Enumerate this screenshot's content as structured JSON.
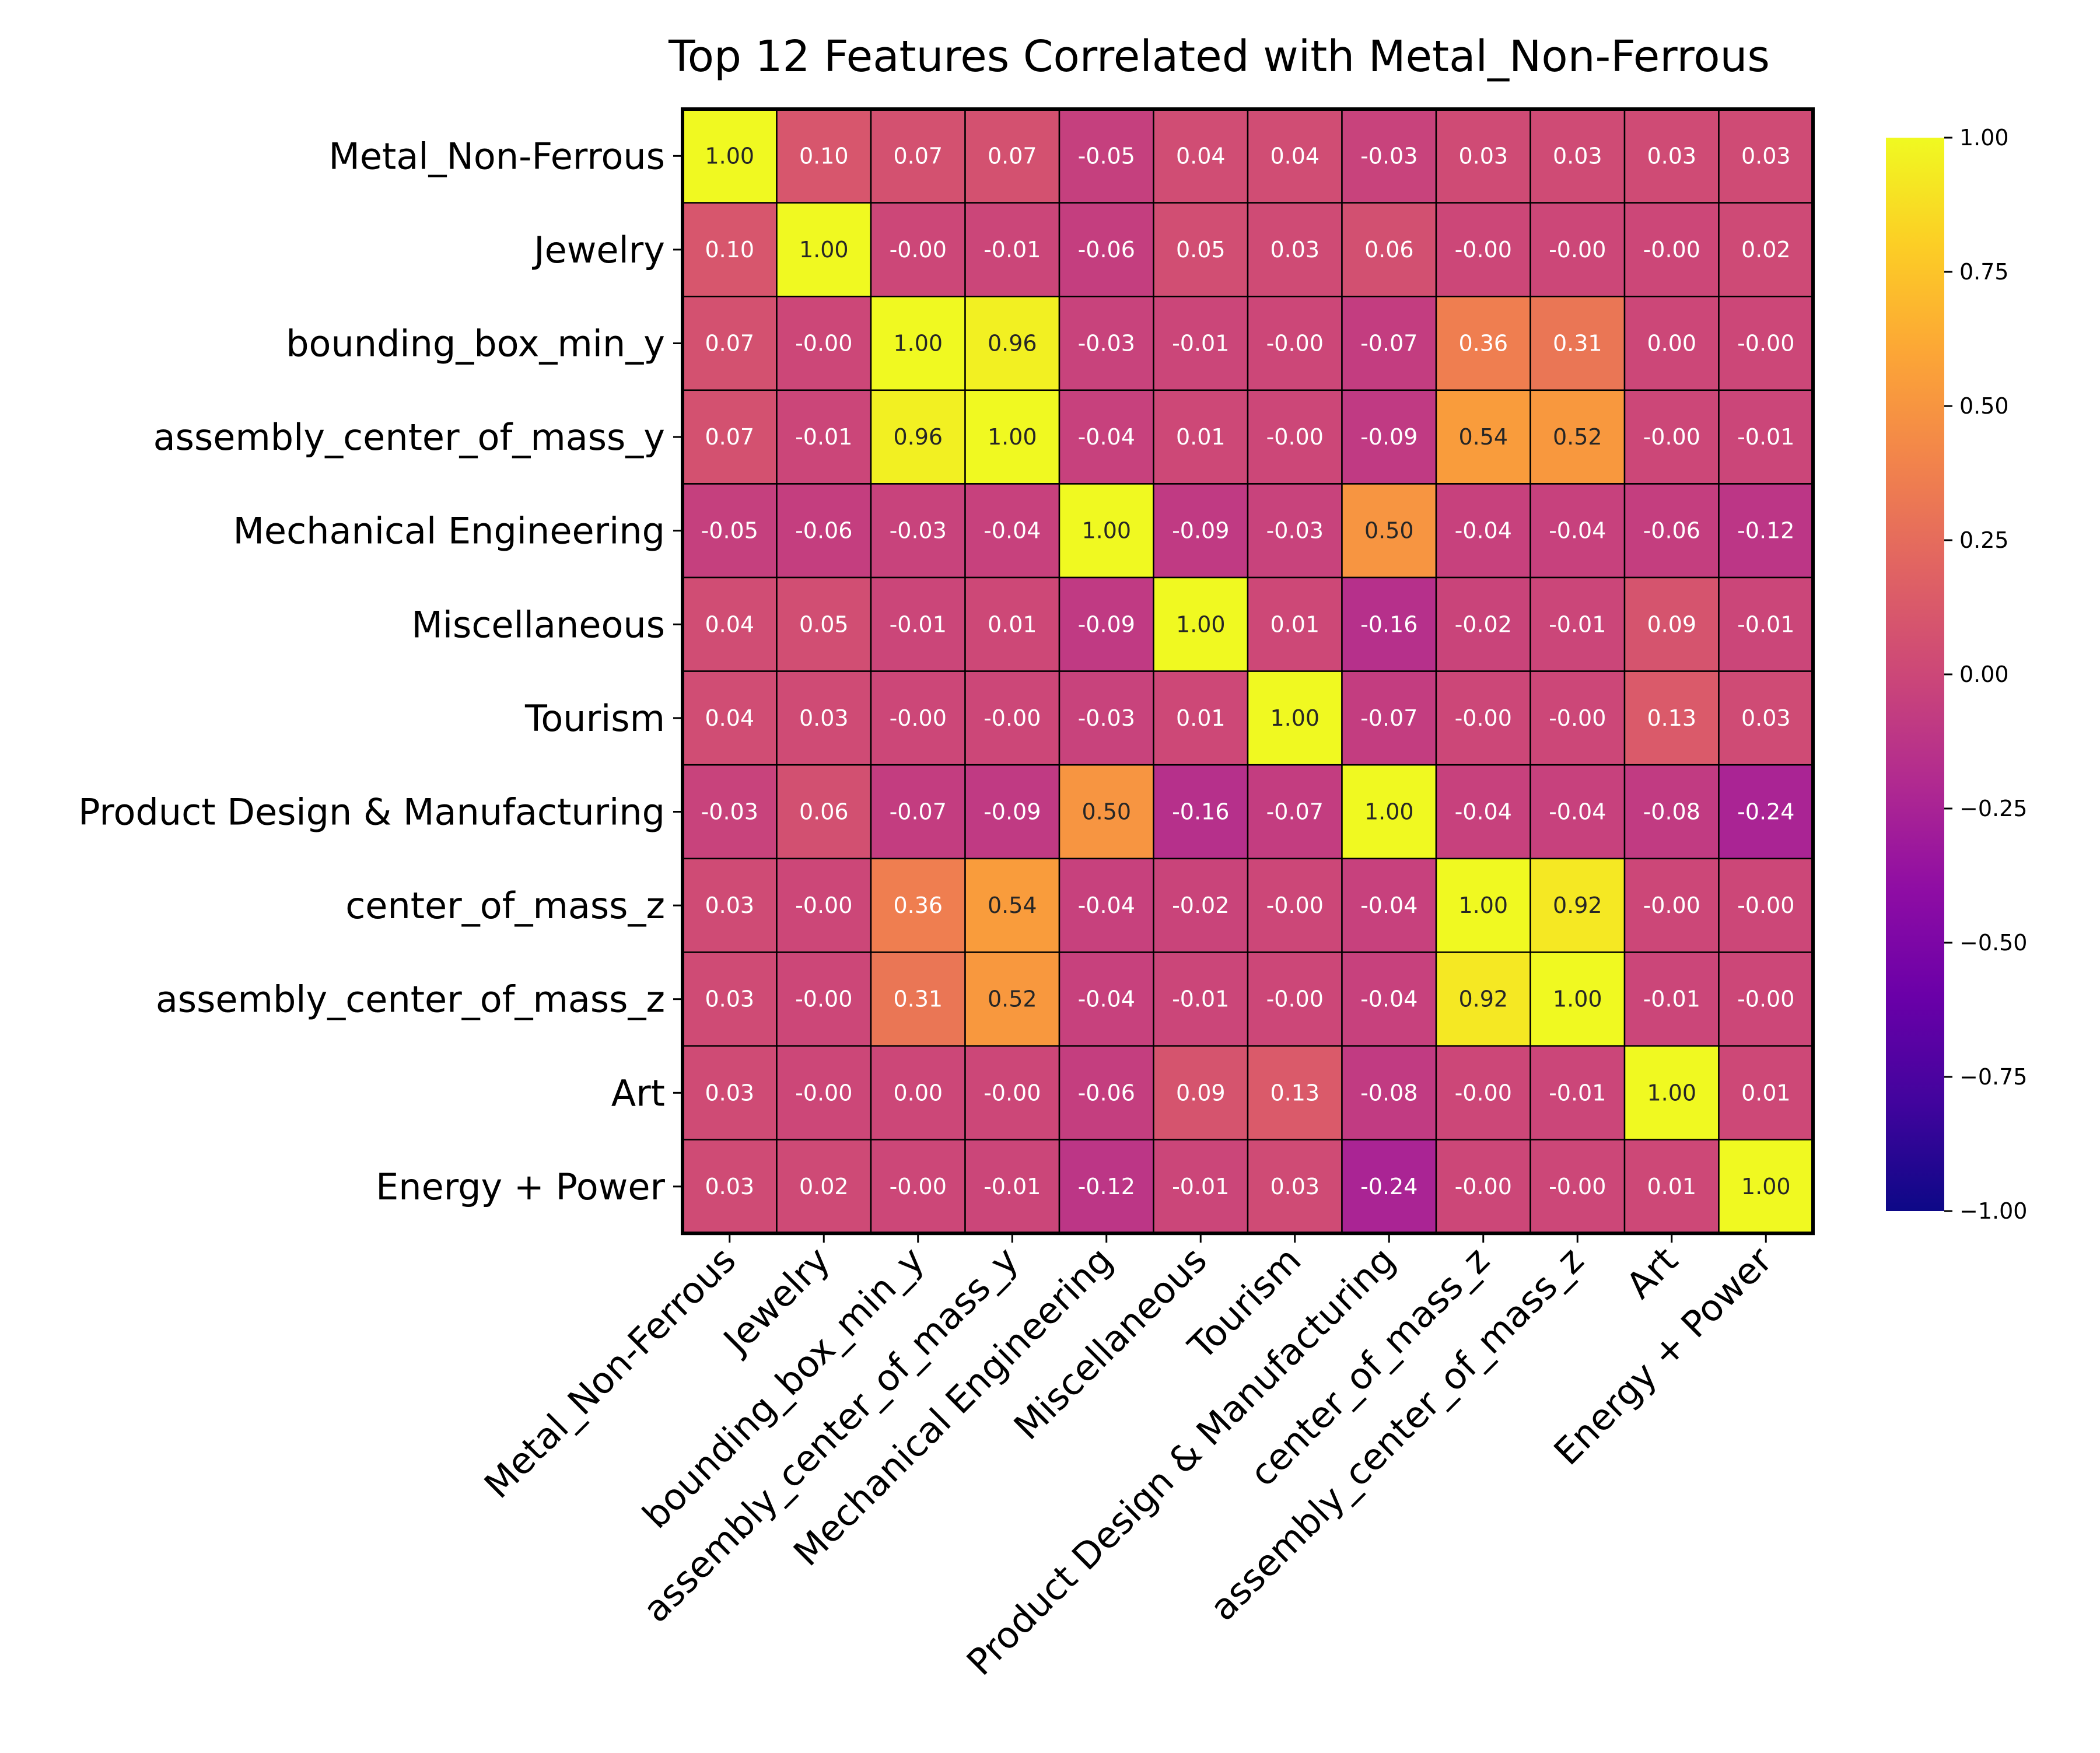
{
  "chart_data": {
    "type": "heatmap",
    "title": "Top 12 Features Correlated with Metal_Non-Ferrous",
    "labels": [
      "Metal_Non-Ferrous",
      "Jewelry",
      "bounding_box_min_y",
      "assembly_center_of_mass_y",
      "Mechanical Engineering",
      "Miscellaneous",
      "Tourism",
      "Product Design & Manufacturing",
      "center_of_mass_z",
      "assembly_center_of_mass_z",
      "Art",
      "Energy + Power"
    ],
    "value_labels": [
      [
        "1.00",
        "0.10",
        "0.07",
        "0.07",
        "-0.05",
        "0.04",
        "0.04",
        "-0.03",
        "0.03",
        "0.03",
        "0.03",
        "0.03"
      ],
      [
        "0.10",
        "1.00",
        "-0.00",
        "-0.01",
        "-0.06",
        "0.05",
        "0.03",
        "0.06",
        "-0.00",
        "-0.00",
        "-0.00",
        "0.02"
      ],
      [
        "0.07",
        "-0.00",
        "1.00",
        "0.96",
        "-0.03",
        "-0.01",
        "-0.00",
        "-0.07",
        "0.36",
        "0.31",
        "0.00",
        "-0.00"
      ],
      [
        "0.07",
        "-0.01",
        "0.96",
        "1.00",
        "-0.04",
        "0.01",
        "-0.00",
        "-0.09",
        "0.54",
        "0.52",
        "-0.00",
        "-0.01"
      ],
      [
        "-0.05",
        "-0.06",
        "-0.03",
        "-0.04",
        "1.00",
        "-0.09",
        "-0.03",
        "0.50",
        "-0.04",
        "-0.04",
        "-0.06",
        "-0.12"
      ],
      [
        "0.04",
        "0.05",
        "-0.01",
        "0.01",
        "-0.09",
        "1.00",
        "0.01",
        "-0.16",
        "-0.02",
        "-0.01",
        "0.09",
        "-0.01"
      ],
      [
        "0.04",
        "0.03",
        "-0.00",
        "-0.00",
        "-0.03",
        "0.01",
        "1.00",
        "-0.07",
        "-0.00",
        "-0.00",
        "0.13",
        "0.03"
      ],
      [
        "-0.03",
        "0.06",
        "-0.07",
        "-0.09",
        "0.50",
        "-0.16",
        "-0.07",
        "1.00",
        "-0.04",
        "-0.04",
        "-0.08",
        "-0.24"
      ],
      [
        "0.03",
        "-0.00",
        "0.36",
        "0.54",
        "-0.04",
        "-0.02",
        "-0.00",
        "-0.04",
        "1.00",
        "0.92",
        "-0.00",
        "-0.00"
      ],
      [
        "0.03",
        "-0.00",
        "0.31",
        "0.52",
        "-0.04",
        "-0.01",
        "-0.00",
        "-0.04",
        "0.92",
        "1.00",
        "-0.01",
        "-0.00"
      ],
      [
        "0.03",
        "-0.00",
        "0.00",
        "-0.00",
        "-0.06",
        "0.09",
        "0.13",
        "-0.08",
        "-0.00",
        "-0.01",
        "1.00",
        "0.01"
      ],
      [
        "0.03",
        "0.02",
        "-0.00",
        "-0.01",
        "-0.12",
        "-0.01",
        "0.03",
        "-0.24",
        "-0.00",
        "-0.00",
        "0.01",
        "1.00"
      ]
    ],
    "colorscale": "plasma",
    "vmin": -1.0,
    "vmax": 1.0,
    "colorbar_ticks": [
      "1.00",
      "0.75",
      "0.50",
      "0.25",
      "0.00",
      "−0.25",
      "−0.50",
      "−0.75",
      "−1.00"
    ],
    "colorbar_values": [
      1.0,
      0.75,
      0.5,
      0.25,
      0.0,
      -0.25,
      -0.5,
      -0.75,
      -1.0
    ],
    "legend": "right"
  }
}
